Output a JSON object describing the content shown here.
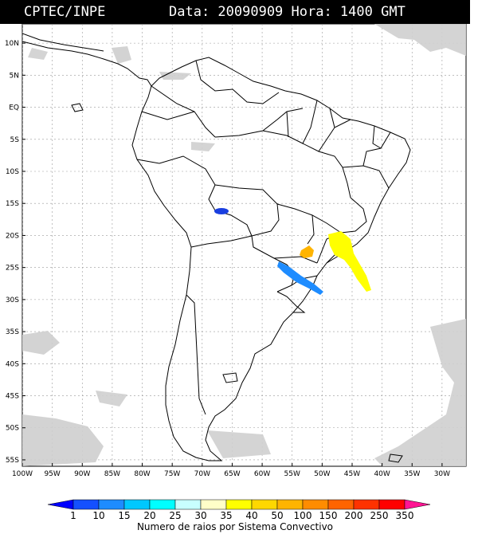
{
  "header": {
    "source": "CPTEC/INPE",
    "datetime": "Data: 20090909 Hora: 1400 GMT"
  },
  "map": {
    "lat_labels": [
      "10N",
      "5N",
      "EQ",
      "5S",
      "10S",
      "15S",
      "20S",
      "25S",
      "30S",
      "35S",
      "40S",
      "45S",
      "50S",
      "55S"
    ],
    "lon_labels": [
      "100W",
      "95W",
      "90W",
      "85W",
      "80W",
      "75W",
      "70W",
      "65W",
      "60W",
      "55W",
      "50W",
      "45W",
      "40W",
      "35W",
      "30W"
    ],
    "lat_values": [
      10,
      5,
      0,
      -5,
      -10,
      -15,
      -20,
      -25,
      -30,
      -35,
      -40,
      -45,
      -50,
      -55
    ],
    "lon_values": [
      -100,
      -95,
      -90,
      -85,
      -80,
      -75,
      -70,
      -65,
      -60,
      -55,
      -50,
      -45,
      -40,
      -35,
      -30
    ],
    "extent": {
      "lon": [
        -100,
        -26
      ],
      "lat": [
        -56,
        13
      ]
    }
  },
  "colorbar": {
    "title": "Numero de raios por Sistema Convectivo",
    "ticks": [
      "1",
      "10",
      "15",
      "20",
      "25",
      "30",
      "35",
      "40",
      "50",
      "100",
      "150",
      "200",
      "250",
      "350"
    ],
    "colors": [
      "#0000ff",
      "#1450ff",
      "#1e8cff",
      "#00c8ff",
      "#00ffff",
      "#c8ffff",
      "#ffffc8",
      "#ffff00",
      "#ffd700",
      "#ffb400",
      "#ff8c00",
      "#ff6400",
      "#ff3200",
      "#ff0000",
      "#ff1493"
    ]
  },
  "systems": [
    {
      "name": "Bolivia cell",
      "color": "#1a3fe0"
    },
    {
      "name": "Argentina-Uruguay band",
      "color": "#1e8cff"
    },
    {
      "name": "Paraguay cell",
      "color": "#ffb400"
    },
    {
      "name": "Sao Paulo band",
      "color": "#ffff00"
    }
  ]
}
